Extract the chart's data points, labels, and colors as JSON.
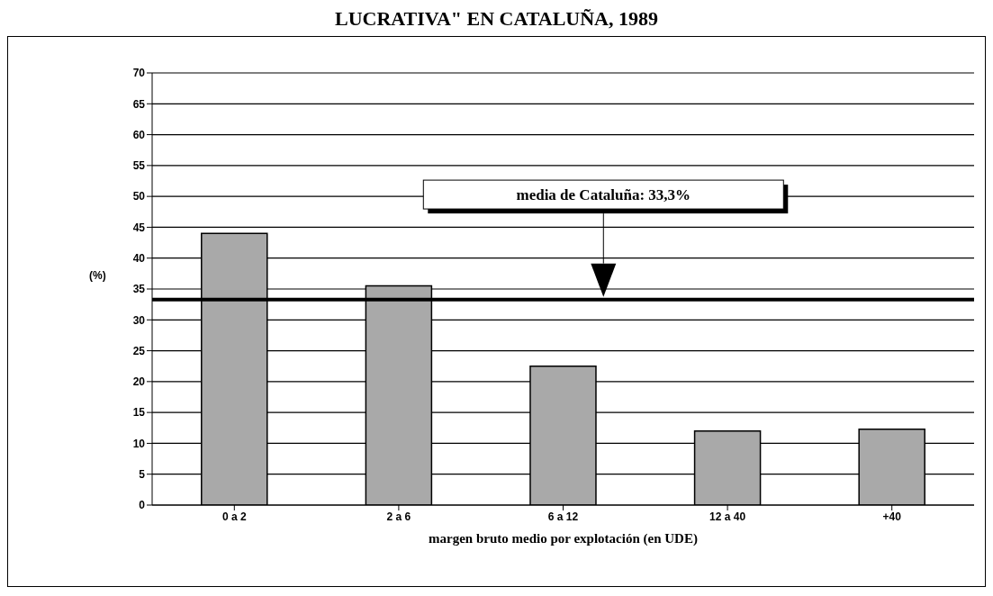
{
  "chart_data": {
    "type": "bar",
    "title": "LUCRATIVA\" EN CATALUÑA, 1989",
    "xlabel": "margen bruto medio por explotación (en UDE)",
    "ylabel": "(%)",
    "categories": [
      "0 a 2",
      "2 a 6",
      "6 a 12",
      "12 a 40",
      "+40"
    ],
    "values": [
      44,
      35.5,
      22.5,
      12,
      12.3
    ],
    "color": "#a9a9a9",
    "ylim": [
      0,
      70
    ],
    "yticks": [
      0,
      5,
      10,
      15,
      20,
      25,
      30,
      35,
      40,
      45,
      50,
      55,
      60,
      65,
      70
    ],
    "grid": "y",
    "ref_lines": [
      {
        "axis": "y",
        "value": 33.3,
        "label": "media de Cataluña: 33,3%",
        "color": "#000000"
      }
    ]
  }
}
